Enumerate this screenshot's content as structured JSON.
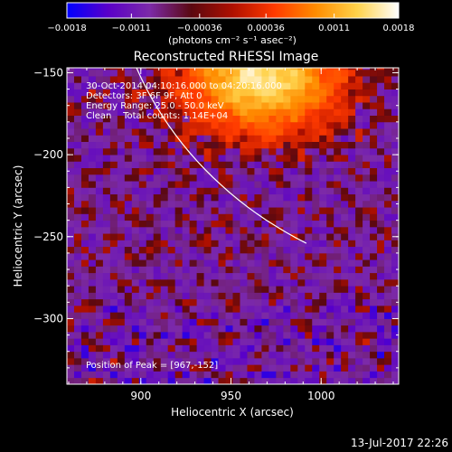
{
  "chart_data": {
    "type": "heatmap",
    "title": "Reconstructed RHESSI Image",
    "xlabel": "Heliocentric X (arcsec)",
    "ylabel": "Heliocentric Y (arcsec)",
    "xlim": [
      859,
      1043
    ],
    "ylim": [
      -340,
      -147
    ],
    "x_ticks": [
      900,
      950,
      1000
    ],
    "x_tick_labels": [
      "900",
      "950",
      "1000"
    ],
    "y_ticks": [
      -300,
      -250,
      -200,
      -150
    ],
    "y_tick_labels": [
      "−300",
      "−250",
      "−200",
      "−150"
    ],
    "colorbar": {
      "range": [
        -0.0018,
        0.0018
      ],
      "ticks": [
        -0.0018,
        -0.0011,
        -0.00036,
        0.00036,
        0.0011,
        0.0018
      ],
      "tick_labels": [
        "−0.0018",
        "−0.0011",
        "−0.00036",
        "0.00036",
        "0.0011",
        "0.0018"
      ],
      "unit_label": "(photons cm⁻² s⁻¹ asec⁻²)",
      "colors": [
        "#0000ff",
        "#5a00c8",
        "#7c2aa8",
        "#5a0810",
        "#b01000",
        "#ff3a00",
        "#ff8c00",
        "#ffd24a",
        "#ffffff"
      ]
    },
    "annotations": [
      "30-Oct-2014 04:10:16.000 to 04:20:16.000",
      "Detectors: 3F 6F 9F, Att 0",
      "Energy Range: 25.0 - 50.0 keV",
      "Clean    Total counts: 1.14E+04"
    ],
    "peak_label": "Position of Peak = [967,-152]",
    "peak": [
      967,
      -152
    ],
    "limb_curve_y": -150
  },
  "footer": {
    "timestamp": "13-Jul-2017 22:26"
  }
}
